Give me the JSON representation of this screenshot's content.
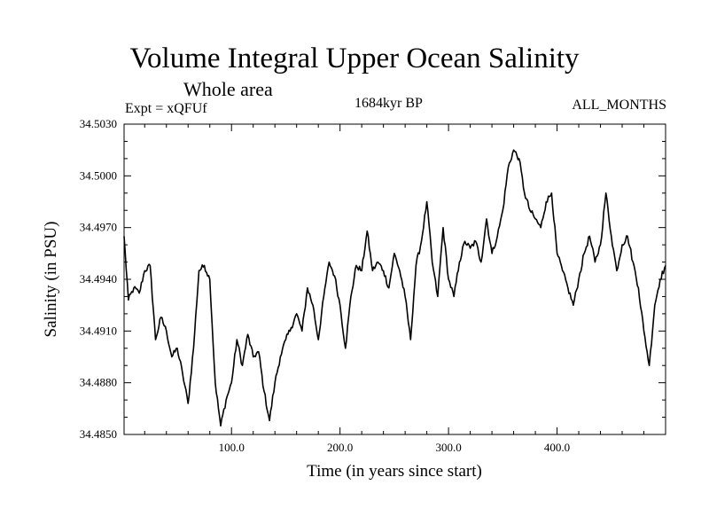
{
  "header": {
    "title": "Volume Integral Upper Ocean Salinity",
    "subtitle": "Whole area",
    "experiment": "Expt = xQFUf",
    "period": "1684kyr BP",
    "months": "ALL_MONTHS"
  },
  "chart_data": {
    "type": "line",
    "title": "Volume Integral Upper Ocean Salinity",
    "xlabel": "Time (in years since start)",
    "ylabel": "Salinity (in PSU)",
    "xlim": [
      1,
      500
    ],
    "ylim": [
      34.485,
      34.503
    ],
    "xticks": [
      100,
      200,
      300,
      400
    ],
    "xtick_labels": [
      "100.0",
      "200.0",
      "300.0",
      "400.0"
    ],
    "yticks": [
      34.485,
      34.488,
      34.491,
      34.494,
      34.497,
      34.5,
      34.503
    ],
    "ytick_labels": [
      "34.4850",
      "34.4880",
      "34.4910",
      "34.4940",
      "34.4970",
      "34.5000",
      "34.5030"
    ],
    "grid": false,
    "series": [
      {
        "name": "Salinity",
        "x": [
          1,
          5,
          10,
          15,
          20,
          25,
          30,
          35,
          40,
          45,
          50,
          55,
          60,
          65,
          70,
          75,
          80,
          85,
          90,
          95,
          100,
          105,
          110,
          115,
          120,
          125,
          130,
          135,
          140,
          145,
          150,
          155,
          160,
          165,
          170,
          175,
          180,
          185,
          190,
          195,
          200,
          205,
          210,
          215,
          220,
          225,
          230,
          235,
          240,
          245,
          250,
          255,
          260,
          265,
          270,
          275,
          280,
          285,
          290,
          295,
          300,
          305,
          310,
          315,
          320,
          325,
          330,
          335,
          340,
          345,
          350,
          355,
          360,
          365,
          370,
          375,
          380,
          385,
          390,
          395,
          400,
          405,
          410,
          415,
          420,
          425,
          430,
          435,
          440,
          445,
          450,
          455,
          460,
          465,
          470,
          475,
          480,
          485,
          490,
          495,
          500
        ],
        "values": [
          34.4965,
          34.4928,
          34.4935,
          34.4932,
          34.4945,
          34.4948,
          34.4905,
          34.4918,
          34.491,
          34.4895,
          34.49,
          34.4885,
          34.4868,
          34.49,
          34.4945,
          34.4948,
          34.494,
          34.488,
          34.4855,
          34.487,
          34.488,
          34.4905,
          34.489,
          34.4908,
          34.4895,
          34.4898,
          34.4875,
          34.4858,
          34.488,
          34.4895,
          34.4905,
          34.4912,
          34.492,
          34.491,
          34.4935,
          34.4925,
          34.4905,
          34.493,
          34.495,
          34.4942,
          34.4925,
          34.49,
          34.493,
          34.4948,
          34.4945,
          34.4968,
          34.4945,
          34.495,
          34.4945,
          34.4935,
          34.4955,
          34.4945,
          34.493,
          34.4905,
          34.4948,
          34.4962,
          34.4985,
          34.495,
          34.493,
          34.497,
          34.494,
          34.493,
          34.495,
          34.4962,
          34.4958,
          34.4962,
          34.495,
          34.4975,
          34.4955,
          34.4965,
          34.498,
          34.5005,
          34.5015,
          34.501,
          34.499,
          34.498,
          34.4975,
          34.497,
          34.4985,
          34.499,
          34.4955,
          34.4945,
          34.4935,
          34.4925,
          34.494,
          34.4955,
          34.4965,
          34.495,
          34.496,
          34.499,
          34.4965,
          34.4945,
          34.496,
          34.4965,
          34.495,
          34.4935,
          34.491,
          34.489,
          34.4925,
          34.494,
          34.4948
        ]
      }
    ]
  }
}
